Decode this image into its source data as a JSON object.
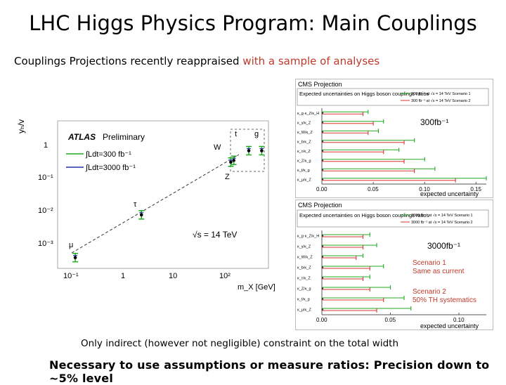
{
  "slide": {
    "title": "LHC Higgs Physics Program: Main Couplings",
    "subtitle_plain": "Couplings Projections recently reappraised",
    "subtitle_red": "with a sample of analyses",
    "note_width": "Only indirect (however not negligible) constraint on the total width",
    "note_ratios": "Necessary to use assumptions or measure ratios: Precision down to ~5% level",
    "accent_color": "#c0392b"
  },
  "atlas_plot": {
    "header_bold": "ATLAS",
    "header_rest": "Preliminary",
    "ylabel": "yₕ/v",
    "xlabel": "m_X [GeV]",
    "energy_label": "√s = 14 TeV",
    "legend": [
      {
        "label": "∫Ldt=300 fb⁻¹",
        "color": "#22aa22"
      },
      {
        "label": "∫Ldt=3000 fb⁻¹",
        "color": "#2233aa"
      }
    ],
    "y_ticks": [
      "1",
      "10⁻¹",
      "10⁻²",
      "10⁻³"
    ],
    "x_ticks": [
      "10⁻¹",
      "1",
      "10",
      "10²"
    ],
    "particles": [
      "μ",
      "τ",
      "W",
      "Z",
      "t",
      "g"
    ]
  },
  "chart_data": [
    {
      "type": "scatter",
      "title": "ATLAS Preliminary",
      "xlabel": "m_X [GeV]",
      "xscale": "log",
      "yscale": "log",
      "xlim": [
        0.05,
        400
      ],
      "ylim": [
        0.0003,
        5
      ],
      "points": [
        {
          "label": "μ",
          "x": 0.106,
          "y": 0.00061
        },
        {
          "label": "τ",
          "x": 1.78,
          "y": 0.0102
        },
        {
          "label": "Z",
          "x": 91.2,
          "y": 0.37
        },
        {
          "label": "W",
          "x": 80.4,
          "y": 0.33
        },
        {
          "label": "t",
          "x": 173,
          "y": 0.7
        },
        {
          "label": "g",
          "x": 300,
          "y": 0.7
        }
      ]
    },
    {
      "type": "errorbar",
      "title": "CMS Projection",
      "subtitle": "Expected uncertainties on Higgs boson couplings ratios",
      "luminosity": "300fb⁻¹",
      "xlabel": "expected uncertainty",
      "xlim": [
        0,
        0.16
      ],
      "x_ticks": [
        "0.00",
        "0.05",
        "0.10",
        "0.15"
      ],
      "legend": [
        "300 fb⁻¹ at √s = 14 TeV Scenario 1",
        "300 fb⁻¹ at √s = 14 TeV Scenario 2"
      ],
      "categories": [
        "κ_g·κ_Z/κ_H",
        "κ_γ/κ_Z",
        "κ_W/κ_Z",
        "κ_b/κ_Z",
        "κ_τ/κ_Z",
        "κ_Z/κ_g",
        "κ_t/κ_g",
        "κ_μ/κ_Z"
      ],
      "series": [
        {
          "name": "Scenario 1",
          "values": [
            0.045,
            0.06,
            0.055,
            0.09,
            0.075,
            0.1,
            0.11,
            0.16
          ]
        },
        {
          "name": "Scenario 2",
          "values": [
            0.04,
            0.05,
            0.045,
            0.08,
            0.06,
            0.08,
            0.09,
            0.13
          ]
        }
      ]
    },
    {
      "type": "errorbar",
      "title": "CMS Projection",
      "subtitle": "Expected uncertainties on Higgs boson couplings ratios",
      "luminosity": "3000fb⁻¹",
      "xlabel": "expected uncertainty",
      "xlim": [
        0,
        0.12
      ],
      "x_ticks": [
        "0.00",
        "0.05",
        "0.10"
      ],
      "legend": [
        "3000 fb⁻¹ at √s = 14 TeV Scenario 1",
        "3000 fb⁻¹ at √s = 14 TeV Scenario 2"
      ],
      "categories": [
        "κ_g·κ_Z/κ_H",
        "κ_γ/κ_Z",
        "κ_W/κ_Z",
        "κ_b/κ_Z",
        "κ_τ/κ_Z",
        "κ_Z/κ_g",
        "κ_t/κ_g",
        "κ_μ/κ_Z"
      ],
      "series": [
        {
          "name": "Scenario 1",
          "values": [
            0.035,
            0.04,
            0.03,
            0.045,
            0.035,
            0.05,
            0.06,
            0.065
          ]
        },
        {
          "name": "Scenario 2",
          "values": [
            0.03,
            0.03,
            0.025,
            0.035,
            0.03,
            0.035,
            0.045,
            0.04
          ]
        }
      ]
    }
  ],
  "scenarios": {
    "s1_title": "Scenario 1",
    "s1_desc": "Same as current",
    "s2_title": "Scenario 2",
    "s2_desc": "50% TH systematics"
  }
}
